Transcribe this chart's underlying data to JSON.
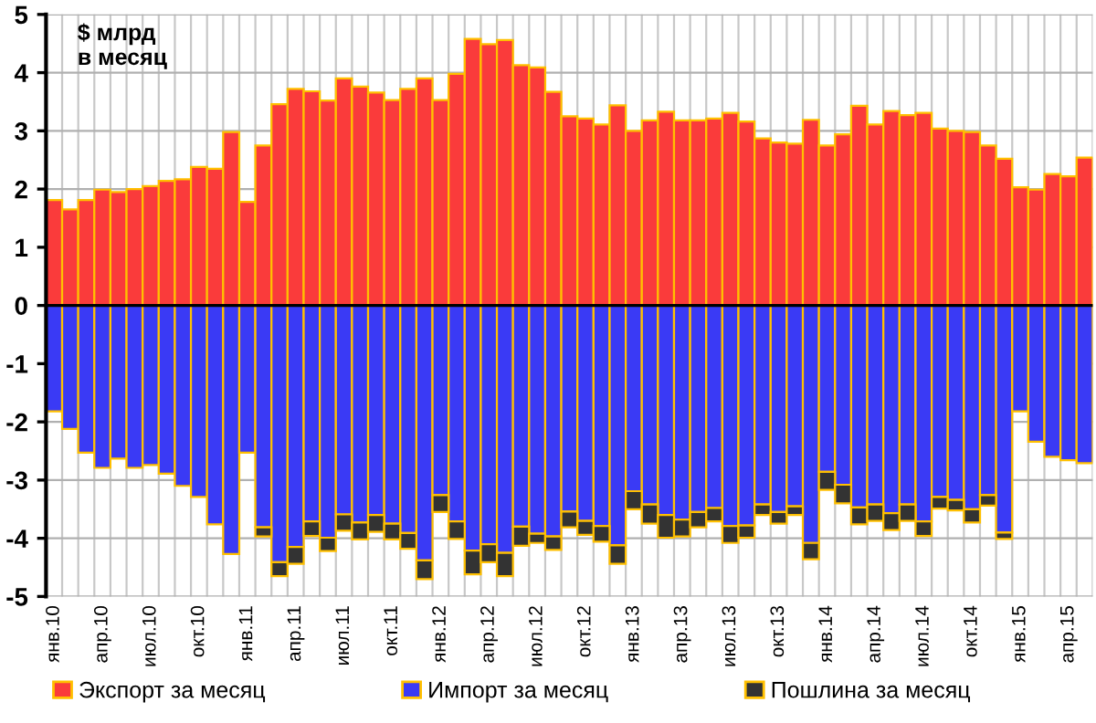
{
  "chart_data": {
    "type": "bar",
    "stacked": true,
    "ylabel": "$ млрд\nв месяц",
    "categories": [
      "янв.10",
      null,
      null,
      "апр.10",
      null,
      null,
      "июл.10",
      null,
      null,
      "окт.10",
      null,
      null,
      "янв.11",
      null,
      null,
      "апр.11",
      null,
      null,
      "июл.11",
      null,
      null,
      "окт.11",
      null,
      null,
      "янв.12",
      null,
      null,
      "апр.12",
      null,
      null,
      "июл.12",
      null,
      null,
      "окт.12",
      null,
      null,
      "янв.13",
      null,
      null,
      "апр.13",
      null,
      null,
      "июл.13",
      null,
      null,
      "окт.13",
      null,
      null,
      "янв.14",
      null,
      null,
      "апр.14",
      null,
      null,
      "июл.14",
      null,
      null,
      "окт.14",
      null,
      null,
      "янв.15",
      null,
      null,
      "апр.15",
      null
    ],
    "series": [
      {
        "name": "Экспорт за месяц",
        "color": "#fa3b3b",
        "values": [
          1.81,
          1.65,
          1.81,
          1.99,
          1.95,
          2.0,
          2.05,
          2.14,
          2.17,
          2.38,
          2.35,
          2.98,
          1.78,
          2.75,
          3.46,
          3.72,
          3.68,
          3.52,
          3.9,
          3.76,
          3.66,
          3.53,
          3.72,
          3.9,
          3.53,
          3.98,
          4.58,
          4.49,
          4.56,
          4.13,
          4.09,
          3.67,
          3.25,
          3.21,
          3.11,
          3.44,
          3.0,
          3.18,
          3.33,
          3.18,
          3.18,
          3.21,
          3.31,
          3.16,
          2.87,
          2.8,
          2.78,
          3.19,
          2.75,
          2.94,
          3.43,
          3.11,
          3.34,
          3.27,
          3.31,
          3.04,
          3.0,
          2.98,
          2.75,
          2.52,
          2.03,
          1.99,
          2.26,
          2.22,
          2.54
        ]
      },
      {
        "name": "Импорт за месяц",
        "color": "#3a3af5",
        "values": [
          -1.82,
          -2.12,
          -2.53,
          -2.79,
          -2.63,
          -2.79,
          -2.74,
          -2.89,
          -3.1,
          -3.29,
          -3.76,
          -4.27,
          -2.53,
          -3.81,
          -4.41,
          -4.15,
          -3.71,
          -3.99,
          -3.59,
          -3.73,
          -3.6,
          -3.75,
          -3.91,
          -4.38,
          -3.26,
          -3.71,
          -4.21,
          -4.1,
          -4.25,
          -3.8,
          -3.92,
          -3.97,
          -3.54,
          -3.7,
          -3.79,
          -4.12,
          -3.19,
          -3.42,
          -3.6,
          -3.68,
          -3.55,
          -3.48,
          -3.79,
          -3.78,
          -3.42,
          -3.55,
          -3.45,
          -4.08,
          -2.86,
          -3.08,
          -3.47,
          -3.42,
          -3.57,
          -3.42,
          -3.71,
          -3.29,
          -3.34,
          -3.5,
          -3.26,
          -3.9,
          -1.82,
          -2.34,
          -2.6,
          -2.66,
          -2.71
        ]
      },
      {
        "name": "Пошлина за месяц",
        "color": "#333333",
        "values": [
          null,
          null,
          null,
          null,
          null,
          null,
          null,
          null,
          null,
          null,
          null,
          null,
          null,
          -0.16,
          -0.24,
          -0.29,
          -0.25,
          -0.23,
          -0.28,
          -0.29,
          -0.29,
          -0.27,
          -0.27,
          -0.32,
          -0.29,
          -0.3,
          -0.41,
          -0.31,
          -0.4,
          -0.33,
          -0.16,
          -0.23,
          -0.27,
          -0.24,
          -0.27,
          -0.32,
          -0.31,
          -0.33,
          -0.39,
          -0.29,
          -0.26,
          -0.23,
          -0.29,
          -0.21,
          -0.18,
          -0.2,
          -0.15,
          -0.28,
          -0.31,
          -0.32,
          -0.29,
          -0.28,
          -0.29,
          -0.28,
          -0.25,
          -0.2,
          -0.18,
          -0.23,
          -0.18,
          -0.11,
          null,
          null,
          null,
          null,
          null
        ]
      }
    ],
    "ylim": [
      -5,
      5
    ],
    "yticks": [
      -5,
      -4,
      -3,
      -2,
      -1,
      0,
      1,
      2,
      3,
      4,
      5
    ],
    "grid": true,
    "legend": "bottom"
  }
}
